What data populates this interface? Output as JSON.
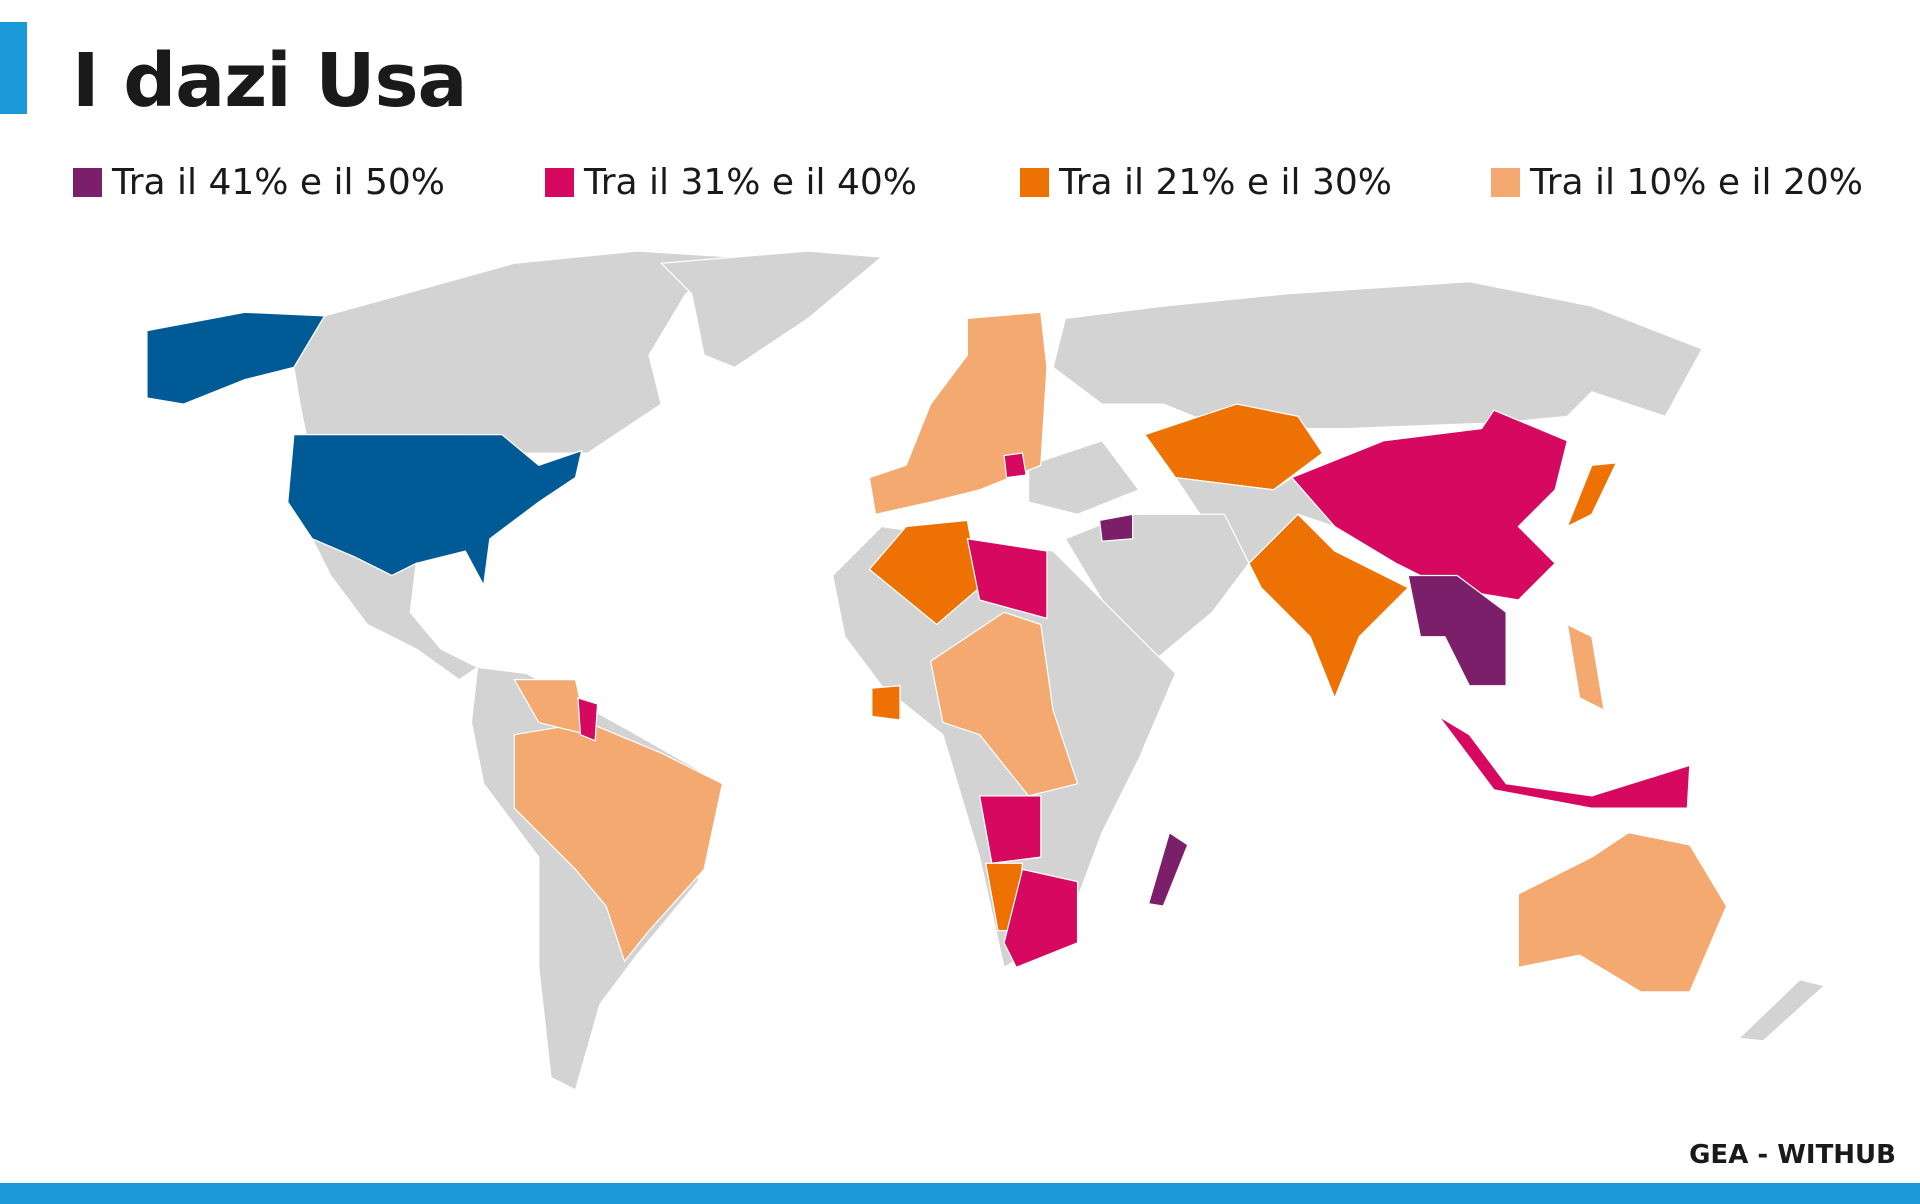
{
  "title": "I dazi Usa",
  "legend": [
    {
      "label": "Tra il 41% e il 50%",
      "color": "#7b1f6a"
    },
    {
      "label": "Tra il 31% e il 40%",
      "color": "#d6085f"
    },
    {
      "label": "Tra il 21% e il 30%",
      "color": "#ee7203"
    },
    {
      "label": "Tra il 10% e il 20%",
      "color": "#f4a971"
    }
  ],
  "land_color": "#d3d3d3",
  "highlight_color": "#005a96",
  "source": "GEA - WITHUB"
}
